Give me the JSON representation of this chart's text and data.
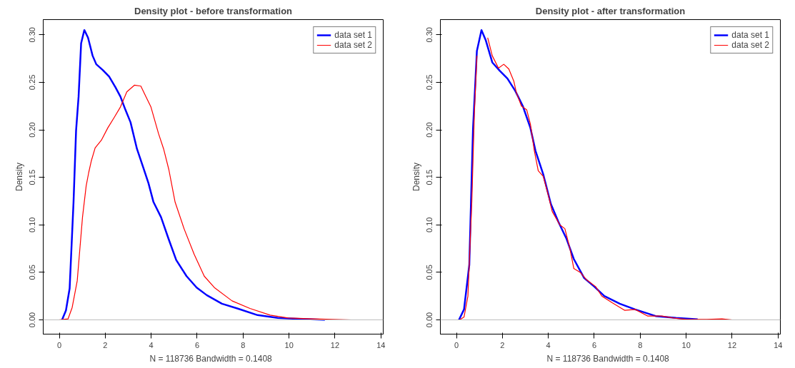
{
  "chart_data": [
    {
      "type": "line",
      "title": "Density plot - before transformation",
      "xlabel": "N = 118736   Bandwidth = 0.1408",
      "ylabel": "Density",
      "xlim": [
        -0.7,
        14.1
      ],
      "ylim": [
        -0.015,
        0.316
      ],
      "xticks": [
        0,
        2,
        4,
        6,
        8,
        10,
        12,
        14
      ],
      "yticks": [
        {
          "value": 0,
          "label": "0.00"
        },
        {
          "value": 0.05,
          "label": "0.05"
        },
        {
          "value": 0.1,
          "label": "0.10"
        },
        {
          "value": 0.15,
          "label": "0.15"
        },
        {
          "value": 0.2,
          "label": "0.20"
        },
        {
          "value": 0.25,
          "label": "0.25"
        },
        {
          "value": 0.3,
          "label": "0.30"
        }
      ],
      "grid": false,
      "legend": "top right",
      "ref_lines": [
        {
          "axis": "y",
          "value": 0,
          "color": "#bebebe"
        }
      ],
      "series": [
        {
          "name": "data set 1",
          "color": "#0000ff",
          "x": [
            0.12,
            0.29,
            0.45,
            0.62,
            0.73,
            0.84,
            0.95,
            1.09,
            1.25,
            1.45,
            1.61,
            1.89,
            2.17,
            2.44,
            2.66,
            2.88,
            3.1,
            3.38,
            3.66,
            3.88,
            4.1,
            4.43,
            4.76,
            5.09,
            5.54,
            5.98,
            6.42,
            7.08,
            7.75,
            8.63,
            9.51,
            10.5,
            11.56
          ],
          "values": [
            0,
            0.01,
            0.033,
            0.124,
            0.199,
            0.235,
            0.291,
            0.305,
            0.297,
            0.278,
            0.269,
            0.263,
            0.256,
            0.245,
            0.235,
            0.221,
            0.208,
            0.18,
            0.16,
            0.144,
            0.124,
            0.108,
            0.085,
            0.063,
            0.046,
            0.034,
            0.026,
            0.017,
            0.012,
            0.005,
            0.002,
            0.001,
            0
          ]
        },
        {
          "name": "data set 2",
          "color": "#ff0000",
          "x": [
            -0.02,
            0.38,
            0.56,
            0.78,
            1.01,
            1.17,
            1.28,
            1.39,
            1.56,
            1.83,
            2.11,
            2.39,
            2.66,
            2.94,
            3.27,
            3.55,
            3.77,
            3.99,
            4.32,
            4.54,
            4.77,
            5.04,
            5.43,
            5.87,
            6.31,
            6.75,
            7.52,
            8.3,
            9.18,
            9.96,
            11.06,
            12.72
          ],
          "values": [
            0,
            0.001,
            0.013,
            0.041,
            0.108,
            0.141,
            0.155,
            0.167,
            0.181,
            0.189,
            0.202,
            0.213,
            0.224,
            0.24,
            0.247,
            0.246,
            0.235,
            0.224,
            0.196,
            0.18,
            0.158,
            0.124,
            0.096,
            0.069,
            0.046,
            0.034,
            0.02,
            0.012,
            0.005,
            0.002,
            0.001,
            0
          ]
        }
      ]
    },
    {
      "type": "line",
      "title": "Density plot - after transformation",
      "xlabel": "N = 118736   Bandwidth = 0.1408",
      "ylabel": "Density",
      "xlim": [
        -0.7,
        14.1
      ],
      "ylim": [
        -0.015,
        0.316
      ],
      "xticks": [
        0,
        2,
        4,
        6,
        8,
        10,
        12,
        14
      ],
      "yticks": [
        {
          "value": 0,
          "label": "0.00"
        },
        {
          "value": 0.05,
          "label": "0.05"
        },
        {
          "value": 0.1,
          "label": "0.10"
        },
        {
          "value": 0.15,
          "label": "0.15"
        },
        {
          "value": 0.2,
          "label": "0.20"
        },
        {
          "value": 0.25,
          "label": "0.25"
        },
        {
          "value": 0.3,
          "label": "0.30"
        }
      ],
      "grid": false,
      "legend": "top right",
      "ref_lines": [
        {
          "axis": "y",
          "value": 0,
          "color": "#bebebe"
        }
      ],
      "series": [
        {
          "name": "data set 1",
          "color": "#0000ff",
          "x": [
            0.11,
            0.33,
            0.56,
            0.72,
            0.89,
            1.09,
            1.28,
            1.56,
            1.89,
            2.22,
            2.56,
            2.89,
            3.22,
            3.44,
            3.78,
            4.11,
            4.44,
            4.78,
            5.11,
            5.56,
            6.0,
            6.44,
            7.11,
            7.78,
            8.67,
            9.56,
            10.5
          ],
          "values": [
            0,
            0.011,
            0.058,
            0.2,
            0.283,
            0.305,
            0.294,
            0.271,
            0.262,
            0.254,
            0.241,
            0.225,
            0.202,
            0.178,
            0.153,
            0.122,
            0.103,
            0.086,
            0.064,
            0.044,
            0.035,
            0.025,
            0.017,
            0.011,
            0.004,
            0.002,
            0.0005
          ]
        },
        {
          "name": "data set 2",
          "color": "#ff0000",
          "x": [
            0.14,
            0.33,
            0.5,
            0.67,
            0.78,
            0.89,
            0.92,
            1.1,
            1.26,
            1.36,
            1.56,
            1.83,
            2.06,
            2.28,
            2.5,
            2.61,
            2.83,
            3.06,
            3.22,
            3.39,
            3.56,
            3.78,
            4.0,
            4.17,
            4.5,
            4.72,
            4.94,
            5.11,
            5.39,
            5.67,
            6.06,
            6.33,
            6.78,
            7.33,
            7.78,
            8.33,
            8.94,
            9.44,
            10.0,
            10.9,
            11.56,
            12.0
          ],
          "values": [
            0,
            0.003,
            0.025,
            0.125,
            0.217,
            0.278,
            null,
            null,
            null,
            0.297,
            0.278,
            0.265,
            0.269,
            0.264,
            0.251,
            0.239,
            0.225,
            0.221,
            0.206,
            0.178,
            0.157,
            0.151,
            0.131,
            0.114,
            0.1,
            0.096,
            0.075,
            0.054,
            0.05,
            0.042,
            0.035,
            0.025,
            0.018,
            0.01,
            0.011,
            0.004,
            0.004,
            0.002,
            0.0005,
            0.0005,
            0.001,
            0
          ]
        }
      ]
    }
  ]
}
